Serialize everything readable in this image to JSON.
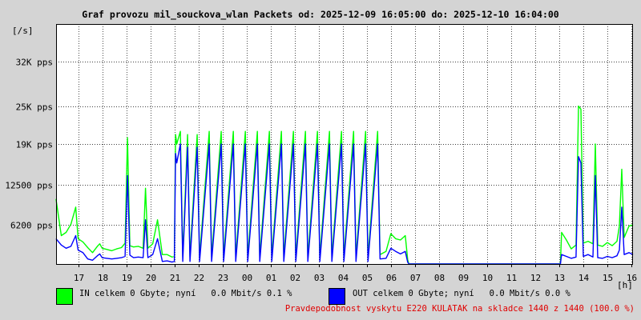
{
  "chart_data": {
    "type": "line",
    "title": "Graf provozu mil_souckova_wlan Packets od: 2025-12-09 16:05:00 do: 2025-12-10 16:04:00",
    "ylabel": "[/s]",
    "xlabel": "[h]",
    "ylim": [
      0,
      38000
    ],
    "yticks": [
      {
        "value": 6200,
        "label": "6200 pps"
      },
      {
        "value": 12500,
        "label": "12500 pps"
      },
      {
        "value": 19000,
        "label": "19K pps"
      },
      {
        "value": 25000,
        "label": "25K pps"
      },
      {
        "value": 32000,
        "label": "32K pps"
      }
    ],
    "x_tick_labels": [
      "17",
      "18",
      "19",
      "20",
      "21",
      "22",
      "23",
      "00",
      "01",
      "02",
      "03",
      "04",
      "05",
      "06",
      "07",
      "08",
      "09",
      "10",
      "11",
      "12",
      "13",
      "14",
      "15",
      "16"
    ],
    "x_start_hour": 16.0833,
    "x_end_hour": 40.0667,
    "series": [
      {
        "name": "IN",
        "color": "#00ff00",
        "points": [
          [
            16.08,
            10300
          ],
          [
            16.3,
            4500
          ],
          [
            16.5,
            5000
          ],
          [
            16.7,
            6300
          ],
          [
            16.9,
            9000
          ],
          [
            17.0,
            4000
          ],
          [
            17.2,
            3500
          ],
          [
            17.4,
            2600
          ],
          [
            17.6,
            1800
          ],
          [
            17.8,
            2800
          ],
          [
            17.9,
            3200
          ],
          [
            18.0,
            2500
          ],
          [
            18.2,
            2300
          ],
          [
            18.4,
            2100
          ],
          [
            18.6,
            2400
          ],
          [
            18.8,
            2600
          ],
          [
            18.95,
            3300
          ],
          [
            19.05,
            20000
          ],
          [
            19.15,
            2900
          ],
          [
            19.3,
            2700
          ],
          [
            19.5,
            2800
          ],
          [
            19.7,
            2500
          ],
          [
            19.8,
            12000
          ],
          [
            19.9,
            2500
          ],
          [
            20.1,
            3200
          ],
          [
            20.3,
            7000
          ],
          [
            20.5,
            1500
          ],
          [
            20.7,
            1500
          ],
          [
            20.9,
            1100
          ],
          [
            21.0,
            1200
          ],
          [
            21.05,
            20500
          ],
          [
            21.1,
            19000
          ],
          [
            21.25,
            21000
          ],
          [
            21.35,
            1200
          ],
          [
            21.55,
            20500
          ],
          [
            21.65,
            1100
          ],
          [
            21.95,
            20500
          ],
          [
            22.05,
            1100
          ],
          [
            22.45,
            21000
          ],
          [
            22.55,
            1100
          ],
          [
            22.95,
            21000
          ],
          [
            23.05,
            1100
          ],
          [
            23.45,
            21000
          ],
          [
            23.55,
            1100
          ],
          [
            23.95,
            21000
          ],
          [
            24.05,
            1100
          ],
          [
            24.45,
            21000
          ],
          [
            24.55,
            1100
          ],
          [
            24.95,
            21000
          ],
          [
            25.05,
            1100
          ],
          [
            25.45,
            21000
          ],
          [
            25.55,
            1100
          ],
          [
            25.95,
            21000
          ],
          [
            26.05,
            1100
          ],
          [
            26.45,
            21000
          ],
          [
            26.55,
            1100
          ],
          [
            26.95,
            21000
          ],
          [
            27.05,
            1100
          ],
          [
            27.45,
            21000
          ],
          [
            27.55,
            1100
          ],
          [
            27.95,
            21000
          ],
          [
            28.05,
            1100
          ],
          [
            28.45,
            21000
          ],
          [
            28.55,
            1100
          ],
          [
            28.95,
            21000
          ],
          [
            29.05,
            1100
          ],
          [
            29.45,
            21000
          ],
          [
            29.55,
            1500
          ],
          [
            29.8,
            2000
          ],
          [
            30.0,
            4800
          ],
          [
            30.2,
            4000
          ],
          [
            30.4,
            3800
          ],
          [
            30.6,
            4500
          ],
          [
            30.7,
            700
          ],
          [
            30.75,
            0
          ],
          [
            37.05,
            0
          ],
          [
            37.1,
            5000
          ],
          [
            37.3,
            3800
          ],
          [
            37.5,
            2400
          ],
          [
            37.7,
            3000
          ],
          [
            37.8,
            25000
          ],
          [
            37.9,
            24500
          ],
          [
            38.0,
            3300
          ],
          [
            38.2,
            3600
          ],
          [
            38.4,
            3200
          ],
          [
            38.5,
            19000
          ],
          [
            38.6,
            3000
          ],
          [
            38.8,
            2800
          ],
          [
            39.0,
            3400
          ],
          [
            39.2,
            2900
          ],
          [
            39.4,
            3600
          ],
          [
            39.5,
            6000
          ],
          [
            39.6,
            15000
          ],
          [
            39.7,
            4200
          ],
          [
            39.9,
            6000
          ],
          [
            40.07,
            6200
          ]
        ]
      },
      {
        "name": "OUT",
        "color": "#0000ff",
        "points": [
          [
            16.08,
            4000
          ],
          [
            16.3,
            3000
          ],
          [
            16.5,
            2500
          ],
          [
            16.7,
            2800
          ],
          [
            16.9,
            4500
          ],
          [
            17.0,
            2200
          ],
          [
            17.2,
            1800
          ],
          [
            17.4,
            800
          ],
          [
            17.6,
            600
          ],
          [
            17.8,
            1300
          ],
          [
            17.9,
            1600
          ],
          [
            18.0,
            1000
          ],
          [
            18.2,
            900
          ],
          [
            18.4,
            800
          ],
          [
            18.6,
            900
          ],
          [
            18.8,
            1000
          ],
          [
            18.95,
            1200
          ],
          [
            19.05,
            14000
          ],
          [
            19.15,
            1400
          ],
          [
            19.3,
            1000
          ],
          [
            19.5,
            1100
          ],
          [
            19.7,
            1000
          ],
          [
            19.8,
            7000
          ],
          [
            19.9,
            1000
          ],
          [
            20.1,
            1500
          ],
          [
            20.3,
            4000
          ],
          [
            20.5,
            400
          ],
          [
            20.7,
            500
          ],
          [
            20.9,
            300
          ],
          [
            21.0,
            400
          ],
          [
            21.05,
            17500
          ],
          [
            21.1,
            16000
          ],
          [
            21.25,
            19000
          ],
          [
            21.35,
            400
          ],
          [
            21.55,
            18500
          ],
          [
            21.65,
            400
          ],
          [
            21.95,
            18500
          ],
          [
            22.05,
            400
          ],
          [
            22.45,
            19000
          ],
          [
            22.55,
            400
          ],
          [
            22.95,
            19000
          ],
          [
            23.05,
            400
          ],
          [
            23.45,
            19000
          ],
          [
            23.55,
            400
          ],
          [
            23.95,
            19000
          ],
          [
            24.05,
            400
          ],
          [
            24.45,
            19000
          ],
          [
            24.55,
            400
          ],
          [
            24.95,
            19000
          ],
          [
            25.05,
            400
          ],
          [
            25.45,
            19000
          ],
          [
            25.55,
            400
          ],
          [
            25.95,
            19000
          ],
          [
            26.05,
            400
          ],
          [
            26.45,
            19000
          ],
          [
            26.55,
            400
          ],
          [
            26.95,
            19000
          ],
          [
            27.05,
            400
          ],
          [
            27.45,
            19000
          ],
          [
            27.55,
            400
          ],
          [
            27.95,
            19000
          ],
          [
            28.05,
            400
          ],
          [
            28.45,
            19000
          ],
          [
            28.55,
            400
          ],
          [
            28.95,
            19000
          ],
          [
            29.05,
            400
          ],
          [
            29.45,
            19000
          ],
          [
            29.55,
            800
          ],
          [
            29.8,
            900
          ],
          [
            30.0,
            2500
          ],
          [
            30.2,
            2000
          ],
          [
            30.4,
            1600
          ],
          [
            30.6,
            2000
          ],
          [
            30.7,
            300
          ],
          [
            30.75,
            0
          ],
          [
            37.05,
            0
          ],
          [
            37.1,
            1500
          ],
          [
            37.3,
            1200
          ],
          [
            37.5,
            900
          ],
          [
            37.7,
            1100
          ],
          [
            37.8,
            17000
          ],
          [
            37.9,
            16000
          ],
          [
            38.0,
            1200
          ],
          [
            38.2,
            1500
          ],
          [
            38.4,
            1100
          ],
          [
            38.5,
            14000
          ],
          [
            38.6,
            1000
          ],
          [
            38.8,
            900
          ],
          [
            39.0,
            1200
          ],
          [
            39.2,
            1000
          ],
          [
            39.4,
            1300
          ],
          [
            39.5,
            2200
          ],
          [
            39.6,
            9000
          ],
          [
            39.7,
            1500
          ],
          [
            39.9,
            1800
          ],
          [
            40.07,
            1500
          ]
        ]
      }
    ],
    "grid": true
  },
  "legend": {
    "in_color": "#00ff00",
    "out_color": "#0000ff",
    "in_text": "IN celkem 0 Gbyte; nyní   0.0 Mbit/s 0.1 %",
    "out_text": "OUT celkem 0 Gbyte; nyní   0.0 Mbit/s 0.0 %"
  },
  "footer_note": "Pravdepodobnost vyskytu E220 KULATAK na skladce 1440 z 1440 (100.0 %)"
}
